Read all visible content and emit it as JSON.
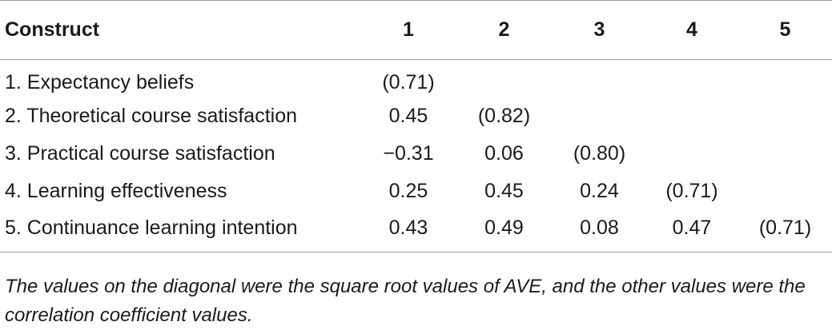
{
  "table": {
    "headers": [
      "Construct",
      "1",
      "2",
      "3",
      "4",
      "5"
    ],
    "rows": [
      [
        "1. Expectancy beliefs",
        "(0.71)",
        "",
        "",
        "",
        ""
      ],
      [
        "2. Theoretical course satisfaction",
        "0.45",
        "(0.82)",
        "",
        "",
        ""
      ],
      [
        "3. Practical course satisfaction",
        "−0.31",
        "0.06",
        "(0.80)",
        "",
        ""
      ],
      [
        "4. Learning effectiveness",
        "0.25",
        "0.45",
        "0.24",
        "(0.71)",
        ""
      ],
      [
        "5. Continuance learning intention",
        "0.43",
        "0.49",
        "0.08",
        "0.47",
        "(0.71)"
      ]
    ]
  },
  "footnote": "The values on the diagonal were the square root values of AVE, and the other values were the correlation coefficient values."
}
